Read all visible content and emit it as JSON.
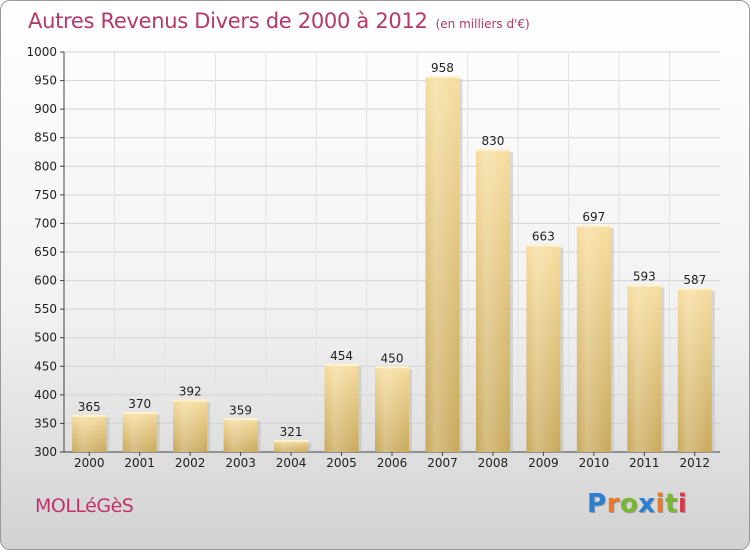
{
  "chart_data": {
    "type": "bar",
    "title": "Autres Revenus Divers de 2000 à 2012",
    "subtitle": "(en milliers d'€)",
    "categories": [
      "2000",
      "2001",
      "2002",
      "2003",
      "2004",
      "2005",
      "2006",
      "2007",
      "2008",
      "2009",
      "2010",
      "2011",
      "2012"
    ],
    "values": [
      365,
      370,
      392,
      359,
      321,
      454,
      450,
      958,
      830,
      663,
      697,
      593,
      587
    ],
    "ylim": [
      300,
      1000
    ],
    "yticks": [
      300,
      350,
      400,
      450,
      500,
      550,
      600,
      650,
      700,
      750,
      800,
      850,
      900,
      950,
      1000
    ],
    "grid": true,
    "bar_color": "#e8cc80"
  },
  "footer": {
    "commune": "MOLLéGèS",
    "logo_letters": [
      {
        "ch": "P",
        "color": "#2a7fd4"
      },
      {
        "ch": "r",
        "color": "#e8792a"
      },
      {
        "ch": "o",
        "color": "#7ab62e"
      },
      {
        "ch": "x",
        "color": "#2a7fd4"
      },
      {
        "ch": "i",
        "color": "#e8792a"
      },
      {
        "ch": "t",
        "color": "#7ab62e"
      },
      {
        "ch": "i",
        "color": "#d9394f"
      }
    ]
  }
}
